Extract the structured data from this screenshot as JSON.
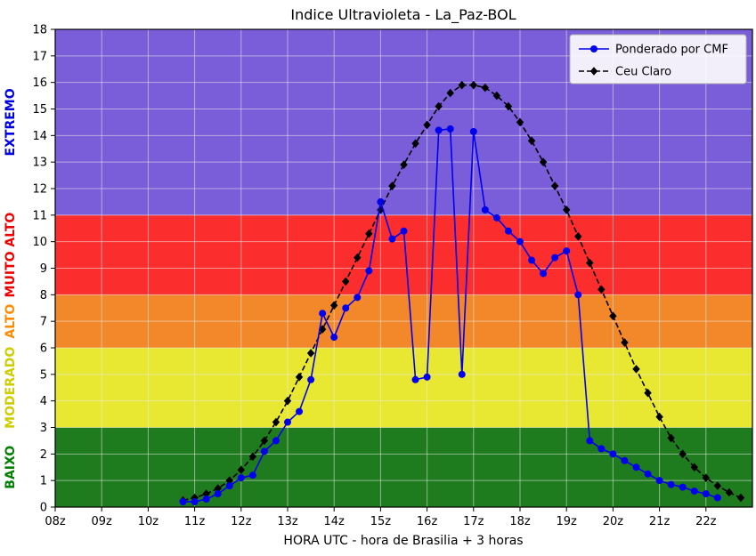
{
  "chart_data": {
    "type": "line",
    "title": "Indice Ultravioleta - La_Paz-BOL",
    "xlabel": "HORA UTC - hora de Brasilia + 3 horas",
    "ylabel": "",
    "xlim": [
      8,
      23
    ],
    "ylim": [
      0,
      18
    ],
    "grid": true,
    "legend_position": "upper right",
    "grid_color": "rgba(235,235,235,0.55)",
    "x_ticks": [
      {
        "label": "08z",
        "value": 8
      },
      {
        "label": "09z",
        "value": 9
      },
      {
        "label": "10z",
        "value": 10
      },
      {
        "label": "11z",
        "value": 11
      },
      {
        "label": "12z",
        "value": 12
      },
      {
        "label": "13z",
        "value": 13
      },
      {
        "label": "14z",
        "value": 14
      },
      {
        "label": "15z",
        "value": 15
      },
      {
        "label": "16z",
        "value": 16
      },
      {
        "label": "17z",
        "value": 17
      },
      {
        "label": "18z",
        "value": 18
      },
      {
        "label": "19z",
        "value": 19
      },
      {
        "label": "20z",
        "value": 20
      },
      {
        "label": "21z",
        "value": 21
      },
      {
        "label": "22z",
        "value": 22
      }
    ],
    "y_ticks": [
      0,
      1,
      2,
      3,
      4,
      5,
      6,
      7,
      8,
      9,
      10,
      11,
      12,
      13,
      14,
      15,
      16,
      17,
      18
    ],
    "bands": [
      {
        "label": "BAIXO",
        "from": 0,
        "to": 3,
        "color": "#1e7b1e",
        "label_color": "#008000"
      },
      {
        "label": "MODERADO",
        "from": 3,
        "to": 6,
        "color": "#e8e832",
        "label_color": "#cdcd00"
      },
      {
        "label": "ALTO",
        "from": 6,
        "to": 8,
        "color": "#f2882a",
        "label_color": "#ff8c00"
      },
      {
        "label": "MUITO ALTO",
        "from": 8,
        "to": 11,
        "color": "#fc2d2d",
        "label_color": "#ee0000"
      },
      {
        "label": "EXTREMO",
        "from": 11,
        "to": 18,
        "color": "#7a5dd8",
        "label_color": "#0000e0"
      }
    ],
    "series": [
      {
        "name": "Ponderado por CMF",
        "color": "#0000ee",
        "marker": "circle",
        "line_style": "solid",
        "x": [
          10.75,
          11.0,
          11.25,
          11.5,
          11.75,
          12.0,
          12.25,
          12.5,
          12.75,
          13.0,
          13.25,
          13.5,
          13.75,
          14.0,
          14.25,
          14.5,
          14.75,
          15.0,
          15.25,
          15.5,
          15.75,
          16.0,
          16.25,
          16.5,
          16.75,
          17.0,
          17.25,
          17.5,
          17.75,
          18.0,
          18.25,
          18.5,
          18.75,
          19.0,
          19.25,
          19.5,
          19.75,
          20.0,
          20.25,
          20.5,
          20.75,
          21.0,
          21.25,
          21.5,
          21.75,
          22.0,
          22.25
        ],
        "values": [
          0.2,
          0.2,
          0.3,
          0.5,
          0.8,
          1.1,
          1.2,
          2.1,
          2.5,
          3.2,
          3.6,
          4.8,
          7.3,
          6.4,
          7.5,
          7.9,
          8.9,
          11.5,
          10.1,
          10.4,
          4.8,
          4.9,
          14.2,
          14.25,
          5.0,
          14.15,
          11.2,
          10.9,
          10.4,
          10.0,
          9.3,
          8.8,
          9.4,
          9.65,
          8.0,
          2.5,
          2.2,
          2.0,
          1.75,
          1.5,
          1.25,
          1.0,
          0.85,
          0.75,
          0.6,
          0.5,
          0.35
        ]
      },
      {
        "name": "Ceu Claro",
        "color": "#000000",
        "marker": "diamond",
        "line_style": "dashed",
        "x": [
          10.75,
          11.0,
          11.25,
          11.5,
          11.75,
          12.0,
          12.25,
          12.5,
          12.75,
          13.0,
          13.25,
          13.5,
          13.75,
          14.0,
          14.25,
          14.5,
          14.75,
          15.0,
          15.25,
          15.5,
          15.75,
          16.0,
          16.25,
          16.5,
          16.75,
          17.0,
          17.25,
          17.5,
          17.75,
          18.0,
          18.25,
          18.5,
          18.75,
          19.0,
          19.25,
          19.5,
          19.75,
          20.0,
          20.25,
          20.5,
          20.75,
          21.0,
          21.25,
          21.5,
          21.75,
          22.0,
          22.25,
          22.5,
          22.75
        ],
        "values": [
          0.25,
          0.35,
          0.5,
          0.7,
          1.0,
          1.4,
          1.9,
          2.5,
          3.2,
          4.0,
          4.9,
          5.8,
          6.7,
          7.6,
          8.5,
          9.4,
          10.3,
          11.2,
          12.1,
          12.9,
          13.7,
          14.4,
          15.1,
          15.6,
          15.9,
          15.9,
          15.8,
          15.5,
          15.1,
          14.5,
          13.8,
          13.0,
          12.1,
          11.2,
          10.2,
          9.2,
          8.2,
          7.2,
          6.2,
          5.2,
          4.3,
          3.4,
          2.6,
          2.0,
          1.5,
          1.1,
          0.8,
          0.55,
          0.35
        ]
      }
    ]
  }
}
